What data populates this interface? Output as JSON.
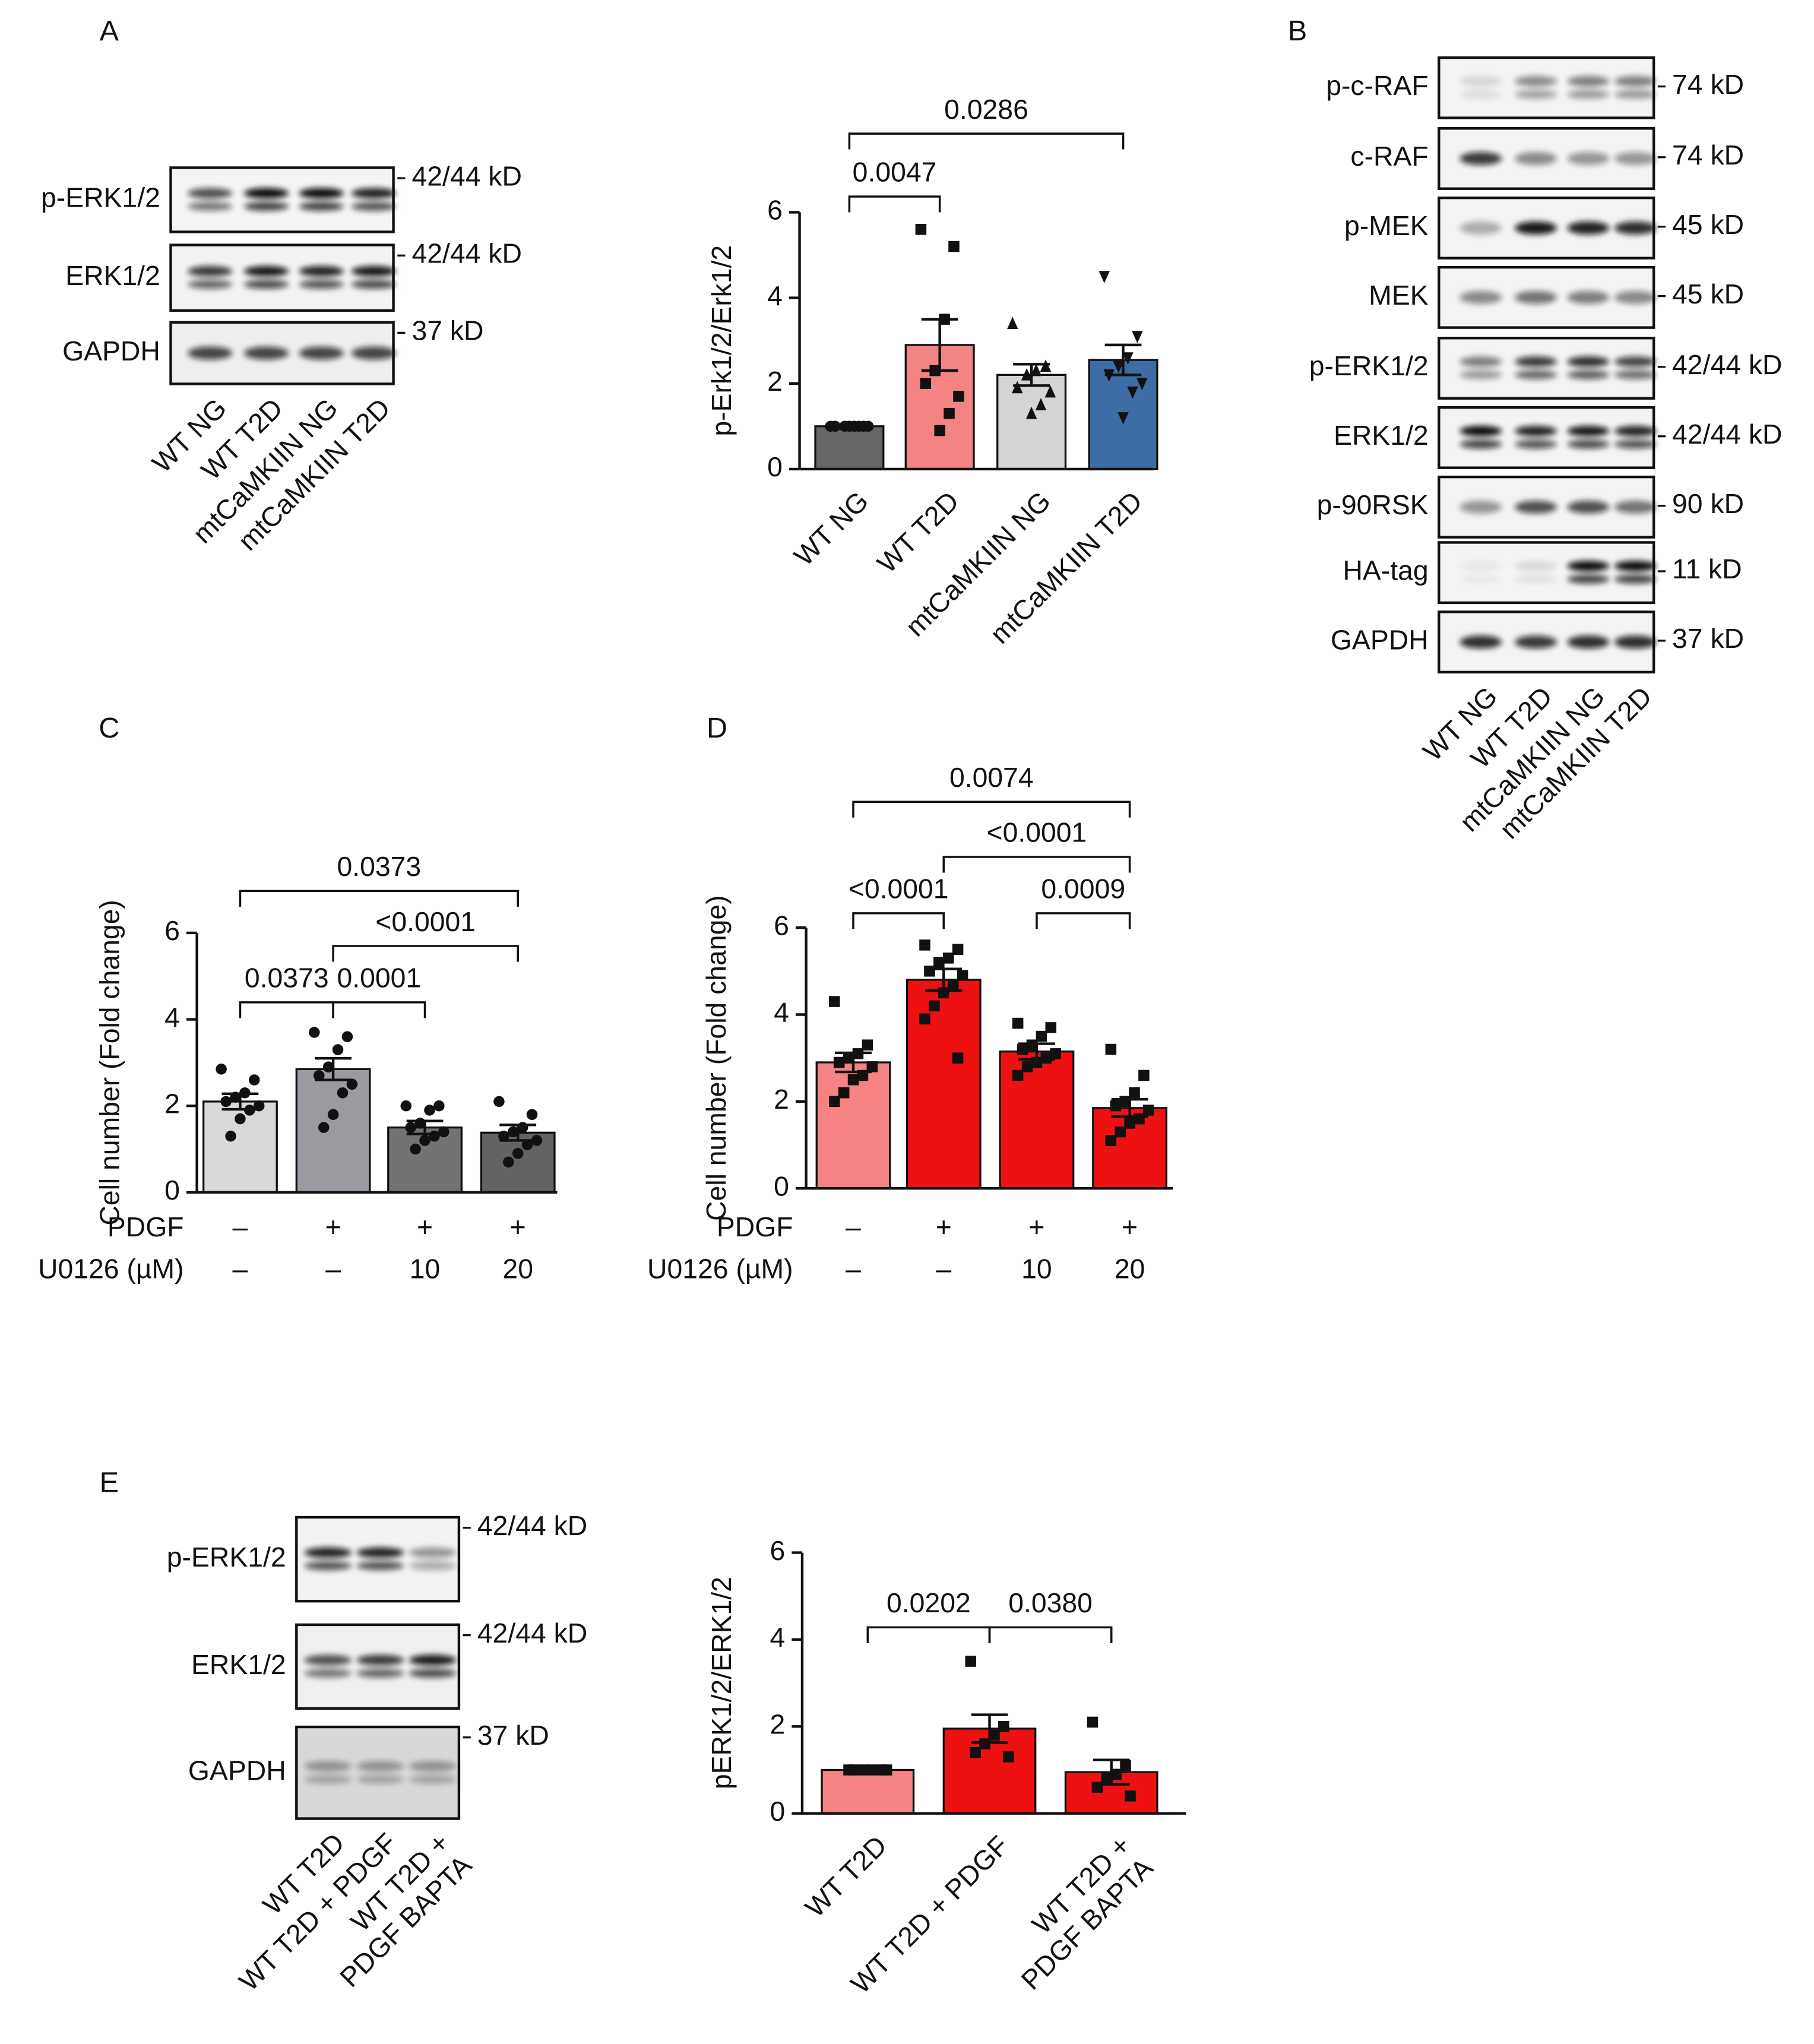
{
  "panel_labels": [
    "A",
    "B",
    "C",
    "D",
    "E"
  ],
  "blots": [
    {
      "rows": [
        {
          "label": "p-ERK1/2",
          "size": "42/44 kD"
        },
        {
          "label": "ERK1/2",
          "size": "42/44 kD"
        },
        {
          "label": "GAPDH",
          "size": "37 kD"
        }
      ],
      "lanes": [
        [
          "WT NG"
        ],
        [
          "WT T2D"
        ],
        [
          "mtCaMKIIN NG"
        ],
        [
          "mtCaMKIIN T2D"
        ]
      ]
    },
    {
      "rows": [
        {
          "label": "p-c-RAF",
          "size": "74 kD"
        },
        {
          "label": "c-RAF",
          "size": "74 kD"
        },
        {
          "label": "p-MEK",
          "size": "45 kD"
        },
        {
          "label": "MEK",
          "size": "45 kD"
        },
        {
          "label": "p-ERK1/2",
          "size": "42/44 kD"
        },
        {
          "label": "ERK1/2",
          "size": "42/44 kD"
        },
        {
          "label": "p-90RSK",
          "size": "90 kD"
        },
        {
          "label": "HA-tag",
          "size": "11 kD"
        },
        {
          "label": "GAPDH",
          "size": "37 kD"
        }
      ],
      "lanes": [
        [
          "WT NG"
        ],
        [
          "WT T2D"
        ],
        [
          "mtCaMKIIN NG"
        ],
        [
          "mtCaMKIIN T2D"
        ]
      ]
    },
    {
      "rows": [
        {
          "label": "p-ERK1/2",
          "size": "42/44 kD"
        },
        {
          "label": "ERK1/2",
          "size": "42/44 kD"
        },
        {
          "label": "GAPDH",
          "size": "37 kD"
        }
      ],
      "lanes": [
        [
          "WT T2D"
        ],
        [
          "WT T2D + PDGF"
        ],
        [
          "WT T2D +",
          "PDGF BAPTA"
        ]
      ]
    }
  ],
  "chart_data": [
    {
      "type": "bar",
      "ylabel": "p-Erk1/2/Erk1/2",
      "categories": [
        [
          "WT NG"
        ],
        [
          "WT T2D"
        ],
        [
          "mtCaMKIIN NG"
        ],
        [
          "mtCaMKIIN T2D"
        ]
      ],
      "values": [
        1,
        2.9,
        2.2,
        2.55
      ],
      "errors": [
        0,
        0.6,
        0.25,
        0.35
      ],
      "colors": [
        "#666666",
        "#f48484",
        "#d4d4d4",
        "#3c6da4"
      ],
      "markers": [
        "circle",
        "square",
        "triangle",
        "triangle-down"
      ],
      "points": [
        [
          1,
          1,
          1,
          1,
          1,
          1,
          1,
          1
        ],
        [
          5.6,
          5.2,
          3.5,
          2.3,
          2.0,
          1.7,
          1.3,
          0.9
        ],
        [
          3.4,
          2.4,
          2.3,
          2.2,
          1.9,
          1.8,
          1.5,
          1.3
        ],
        [
          4.5,
          3.1,
          2.6,
          2.4,
          2.2,
          2.0,
          1.8,
          1.2
        ]
      ],
      "ylim": [
        0,
        6
      ],
      "yticks": [
        0,
        2,
        4,
        6
      ],
      "comparisons": [
        {
          "from": 0,
          "to": 1,
          "label": "0.0047"
        },
        {
          "from": 0,
          "to": 3,
          "label": "0.0286"
        }
      ]
    },
    {
      "type": "bar",
      "ylabel": "Cell number (Fold change)",
      "factors": [
        {
          "name": "PDGF",
          "levels": [
            "–",
            "+",
            "+",
            "+"
          ]
        },
        {
          "name": "U0126 (µM)",
          "levels": [
            "–",
            "–",
            "10",
            "20"
          ]
        }
      ],
      "values": [
        2.1,
        2.85,
        1.5,
        1.38
      ],
      "errors": [
        0.18,
        0.25,
        0.15,
        0.18
      ],
      "colors": [
        "#d9d9d9",
        "#9a9aa0",
        "#737373",
        "#636363"
      ],
      "markers": [
        "circle",
        "circle",
        "circle",
        "circle"
      ],
      "points": [
        [
          2.85,
          2.6,
          2.3,
          2.2,
          2.1,
          2.0,
          1.9,
          1.7,
          1.3
        ],
        [
          3.7,
          3.6,
          3.3,
          2.9,
          2.7,
          2.5,
          2.3,
          1.8,
          1.5
        ],
        [
          2.0,
          2.0,
          1.9,
          1.6,
          1.5,
          1.4,
          1.3,
          1.2,
          1.0
        ],
        [
          2.1,
          1.8,
          1.5,
          1.4,
          1.3,
          1.2,
          1.1,
          0.9,
          0.7
        ]
      ],
      "ylim": [
        0,
        6
      ],
      "yticks": [
        0,
        2,
        4,
        6
      ],
      "comparisons": [
        {
          "from": 0,
          "to": 1,
          "label": "0.0373"
        },
        {
          "from": 1,
          "to": 2,
          "label": "0.0001"
        },
        {
          "from": 1,
          "to": 3,
          "label": "<0.0001"
        },
        {
          "from": 0,
          "to": 3,
          "label": "0.0373"
        }
      ]
    },
    {
      "type": "bar",
      "ylabel": "Cell number (Fold change)",
      "factors": [
        {
          "name": "PDGF",
          "levels": [
            "–",
            "+",
            "+",
            "+"
          ]
        },
        {
          "name": "U0126 (µM)",
          "levels": [
            "–",
            "–",
            "10",
            "20"
          ]
        }
      ],
      "values": [
        2.9,
        4.8,
        3.15,
        1.85
      ],
      "errors": [
        0.22,
        0.25,
        0.18,
        0.2
      ],
      "colors": [
        "#f78282",
        "#ee1111",
        "#ee1111",
        "#ee1111"
      ],
      "markers": [
        "square",
        "square",
        "square",
        "square"
      ],
      "points": [
        [
          4.3,
          3.3,
          3.1,
          3.0,
          2.9,
          2.8,
          2.6,
          2.5,
          2.2,
          2.0
        ],
        [
          5.6,
          5.5,
          5.3,
          5.2,
          5.0,
          4.9,
          4.7,
          4.5,
          4.2,
          3.9,
          3.0
        ],
        [
          3.8,
          3.7,
          3.5,
          3.3,
          3.2,
          3.1,
          3.0,
          2.9,
          2.8,
          2.6
        ],
        [
          3.2,
          2.6,
          2.2,
          2.0,
          1.9,
          1.8,
          1.6,
          1.5,
          1.3,
          1.1
        ]
      ],
      "ylim": [
        0,
        6
      ],
      "yticks": [
        0,
        2,
        4,
        6
      ],
      "comparisons": [
        {
          "from": 0,
          "to": 1,
          "label": "<0.0001"
        },
        {
          "from": 2,
          "to": 3,
          "label": "0.0009"
        },
        {
          "from": 1,
          "to": 3,
          "label": "<0.0001"
        },
        {
          "from": 0,
          "to": 3,
          "label": "0.0074"
        }
      ]
    },
    {
      "type": "bar",
      "ylabel": "pERK1/2/ERK1/2",
      "categories": [
        [
          "WT T2D"
        ],
        [
          "WT T2D + PDGF"
        ],
        [
          "WT T2D +",
          "PDGF BAPTA"
        ]
      ],
      "values": [
        1,
        1.95,
        0.95
      ],
      "errors": [
        0,
        0.32,
        0.28
      ],
      "colors": [
        "#f78282",
        "#ee1111",
        "#ee1111"
      ],
      "markers": [
        "square",
        "square",
        "square"
      ],
      "points": [
        [
          1,
          1,
          1,
          1,
          1,
          1
        ],
        [
          3.5,
          2.0,
          1.8,
          1.6,
          1.4,
          1.3
        ],
        [
          2.1,
          1.1,
          0.9,
          0.8,
          0.6,
          0.4
        ]
      ],
      "ylim": [
        0,
        6
      ],
      "yticks": [
        0,
        2,
        4,
        6
      ],
      "comparisons": [
        {
          "from": 0,
          "to": 1,
          "label": "0.0202"
        },
        {
          "from": 1,
          "to": 2,
          "label": "0.0380"
        }
      ]
    }
  ]
}
